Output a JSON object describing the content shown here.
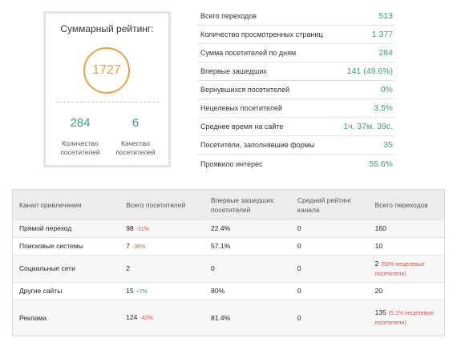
{
  "summary": {
    "title": "Суммарный рейтинг:",
    "rating": "1727",
    "visitors_count": "284",
    "visitors_count_label": "Количество посетителей",
    "visitors_quality": "6",
    "visitors_quality_label": "Качество посетителей",
    "accent_color": "#f0a040",
    "value_color": "#3aa076"
  },
  "stats": [
    {
      "label": "Всего переходов",
      "value": "513"
    },
    {
      "label": "Количество просмотренных страниц",
      "value": "1 377"
    },
    {
      "label": "Сумма посетителей по дням",
      "value": "284"
    },
    {
      "label": "Впервые зашедших",
      "value": "141 (49.6%)"
    },
    {
      "label": "Вернувшихся посетителей",
      "value": "0%"
    },
    {
      "label": "Нецелевых посетителей",
      "value": "3.5%"
    },
    {
      "label": "Среднее время на сайте",
      "value": "1ч. 37м. 39с."
    },
    {
      "label": "Посетители, заполнявшие формы",
      "value": "35"
    },
    {
      "label": "Проявило интерес",
      "value": "55.6%"
    }
  ],
  "table": {
    "headers": [
      "Канал привлечения",
      "Всего посетителей",
      "Впервые зашедших посетителей",
      "Средний рейтинг канала",
      "Всего переходов"
    ],
    "rows": [
      {
        "channel": "Прямой переход",
        "visitors": "98",
        "visitors_delta": "-31%",
        "first": "22.4%",
        "rating": "0",
        "transitions": "160",
        "note": ""
      },
      {
        "channel": "Поисковые системы",
        "visitors": "7",
        "visitors_delta": "-36%",
        "first": "57.1%",
        "rating": "0",
        "transitions": "10",
        "note": ""
      },
      {
        "channel": "Социальные сети",
        "visitors": "2",
        "visitors_delta": "",
        "first": "0",
        "rating": "0",
        "transitions": "2",
        "note": "(50% нецелевые посетители)"
      },
      {
        "channel": "Другие сайты",
        "visitors": "15",
        "visitors_delta": "+7%",
        "first": "80%",
        "rating": "0",
        "transitions": "20",
        "note": ""
      },
      {
        "channel": "Реклама",
        "visitors": "124",
        "visitors_delta": "-42%",
        "first": "81.4%",
        "rating": "0",
        "transitions": "135",
        "note": "(5.1% нецелевые посетители)"
      }
    ]
  }
}
